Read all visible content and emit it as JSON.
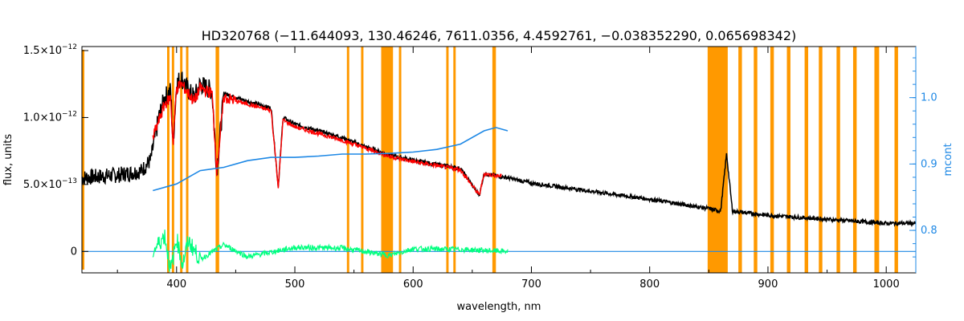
{
  "chart_data": {
    "type": "line",
    "title": "HD320768   (−11.644093, 130.46246, 7611.0356, 4.4592761, −0.038352290, 0.065698342)",
    "xlabel": "wavelength, nm",
    "ylabel": "flux, units",
    "y2label": "mcont",
    "xlim": [
      320,
      1025
    ],
    "ylim": [
      -1.6e-13,
      1.53e-12
    ],
    "y2lim": [
      0.736,
      1.077
    ],
    "x_ticks": [
      400,
      500,
      600,
      700,
      800,
      900,
      1000
    ],
    "x_tick_labels": [
      "400",
      "500",
      "600",
      "700",
      "800",
      "900",
      "1000"
    ],
    "y_ticks": [
      0,
      5e-13,
      1e-12,
      1.5e-12
    ],
    "y_tick_labels": [
      {
        "base": "0",
        "exp": ""
      },
      {
        "base": "5.0×10",
        "exp": "−13"
      },
      {
        "base": "1.0×10",
        "exp": "−12"
      },
      {
        "base": "1.5×10",
        "exp": "−12"
      }
    ],
    "y2_ticks": [
      0.8,
      0.9,
      1.0
    ],
    "y2_tick_labels": [
      "0.8",
      "0.9",
      "1.0"
    ],
    "colors": {
      "observed": "#000000",
      "model": "#ff0000",
      "continuum": "#1e88e5",
      "residual": "#00ff7f",
      "mask": "#ff9900"
    },
    "masks": [
      [
        392,
        394
      ],
      [
        396,
        398
      ],
      [
        403,
        405
      ],
      [
        408,
        410
      ],
      [
        433,
        436
      ],
      [
        544,
        546
      ],
      [
        556,
        558
      ],
      [
        573,
        583
      ],
      [
        588,
        590
      ],
      [
        628,
        630
      ],
      [
        634,
        636
      ],
      [
        667,
        670
      ],
      [
        849,
        866
      ],
      [
        875,
        878
      ],
      [
        888,
        891
      ],
      [
        902,
        905
      ],
      [
        916,
        919
      ],
      [
        931,
        934
      ],
      [
        943,
        946
      ],
      [
        958,
        961
      ],
      [
        972,
        975
      ],
      [
        990,
        994
      ],
      [
        1007,
        1010
      ]
    ],
    "continuum": {
      "x": [
        380,
        400,
        420,
        440,
        460,
        480,
        500,
        520,
        540,
        560,
        580,
        600,
        620,
        640,
        660,
        670,
        680
      ],
      "y": [
        0.86,
        0.87,
        0.89,
        0.895,
        0.905,
        0.91,
        0.91,
        0.912,
        0.915,
        0.915,
        0.916,
        0.918,
        0.922,
        0.93,
        0.95,
        0.955,
        0.95
      ]
    },
    "observed": {
      "x": [
        320,
        350,
        370,
        378,
        385,
        390,
        395,
        397,
        400,
        404,
        410,
        415,
        420,
        430,
        434,
        440,
        460,
        480,
        486,
        490,
        500,
        520,
        540,
        560,
        580,
        600,
        620,
        640,
        656,
        660,
        680,
        700,
        750,
        800,
        850,
        860,
        865,
        870,
        880,
        900,
        950,
        1000,
        1025
      ],
      "y": [
        5.5e-13,
        5.7e-13,
        6e-13,
        6.8e-13,
        1e-12,
        1.15e-12,
        1.2e-12,
        8e-13,
        1.25e-12,
        1.3e-12,
        1.2e-12,
        1.15e-12,
        1.25e-12,
        1.2e-12,
        6e-13,
        1.18e-12,
        1.12e-12,
        1.07e-12,
        4.8e-13,
        1e-12,
        9.5e-13,
        9e-13,
        8.5e-13,
        7.8e-13,
        7.2e-13,
        6.8e-13,
        6.5e-13,
        6.2e-13,
        4.2e-13,
        5.8e-13,
        5.5e-13,
        5.1e-13,
        4.5e-13,
        3.9e-13,
        3.2e-13,
        3e-13,
        7.3e-13,
        3e-13,
        2.9e-13,
        2.7e-13,
        2.4e-13,
        2.1e-13,
        2.1e-13
      ]
    },
    "model": {
      "x": [
        380,
        390,
        395,
        397,
        400,
        404,
        410,
        415,
        420,
        430,
        434,
        440,
        460,
        480,
        486,
        490,
        500,
        520,
        540,
        560,
        580,
        600,
        620,
        640,
        656,
        660,
        675
      ],
      "y": [
        8.5e-13,
        1.1e-12,
        1.15e-12,
        8e-13,
        1.22e-12,
        1.25e-12,
        1.18e-12,
        1.12e-12,
        1.22e-12,
        1.18e-12,
        6e-13,
        1.15e-12,
        1.1e-12,
        1.05e-12,
        4.8e-13,
        9.8e-13,
        9.3e-13,
        8.8e-13,
        8.3e-13,
        7.7e-13,
        7.1e-13,
        6.7e-13,
        6.4e-13,
        6.1e-13,
        4.2e-13,
        5.8e-13,
        5.6e-13
      ]
    },
    "residual": {
      "x": [
        380,
        390,
        395,
        400,
        405,
        410,
        420,
        440,
        460,
        500,
        540,
        580,
        600,
        640,
        680
      ],
      "y": [
        0,
        1.2e-13,
        -1.5e-13,
        1e-13,
        -1e-13,
        8e-14,
        -6e-14,
        5e-14,
        -4e-14,
        3e-14,
        2.5e-14,
        -3e-14,
        2e-14,
        1.5e-14,
        0
      ]
    },
    "zero_line": {
      "x": [
        320,
        1025
      ],
      "y": [
        0,
        0
      ]
    }
  }
}
